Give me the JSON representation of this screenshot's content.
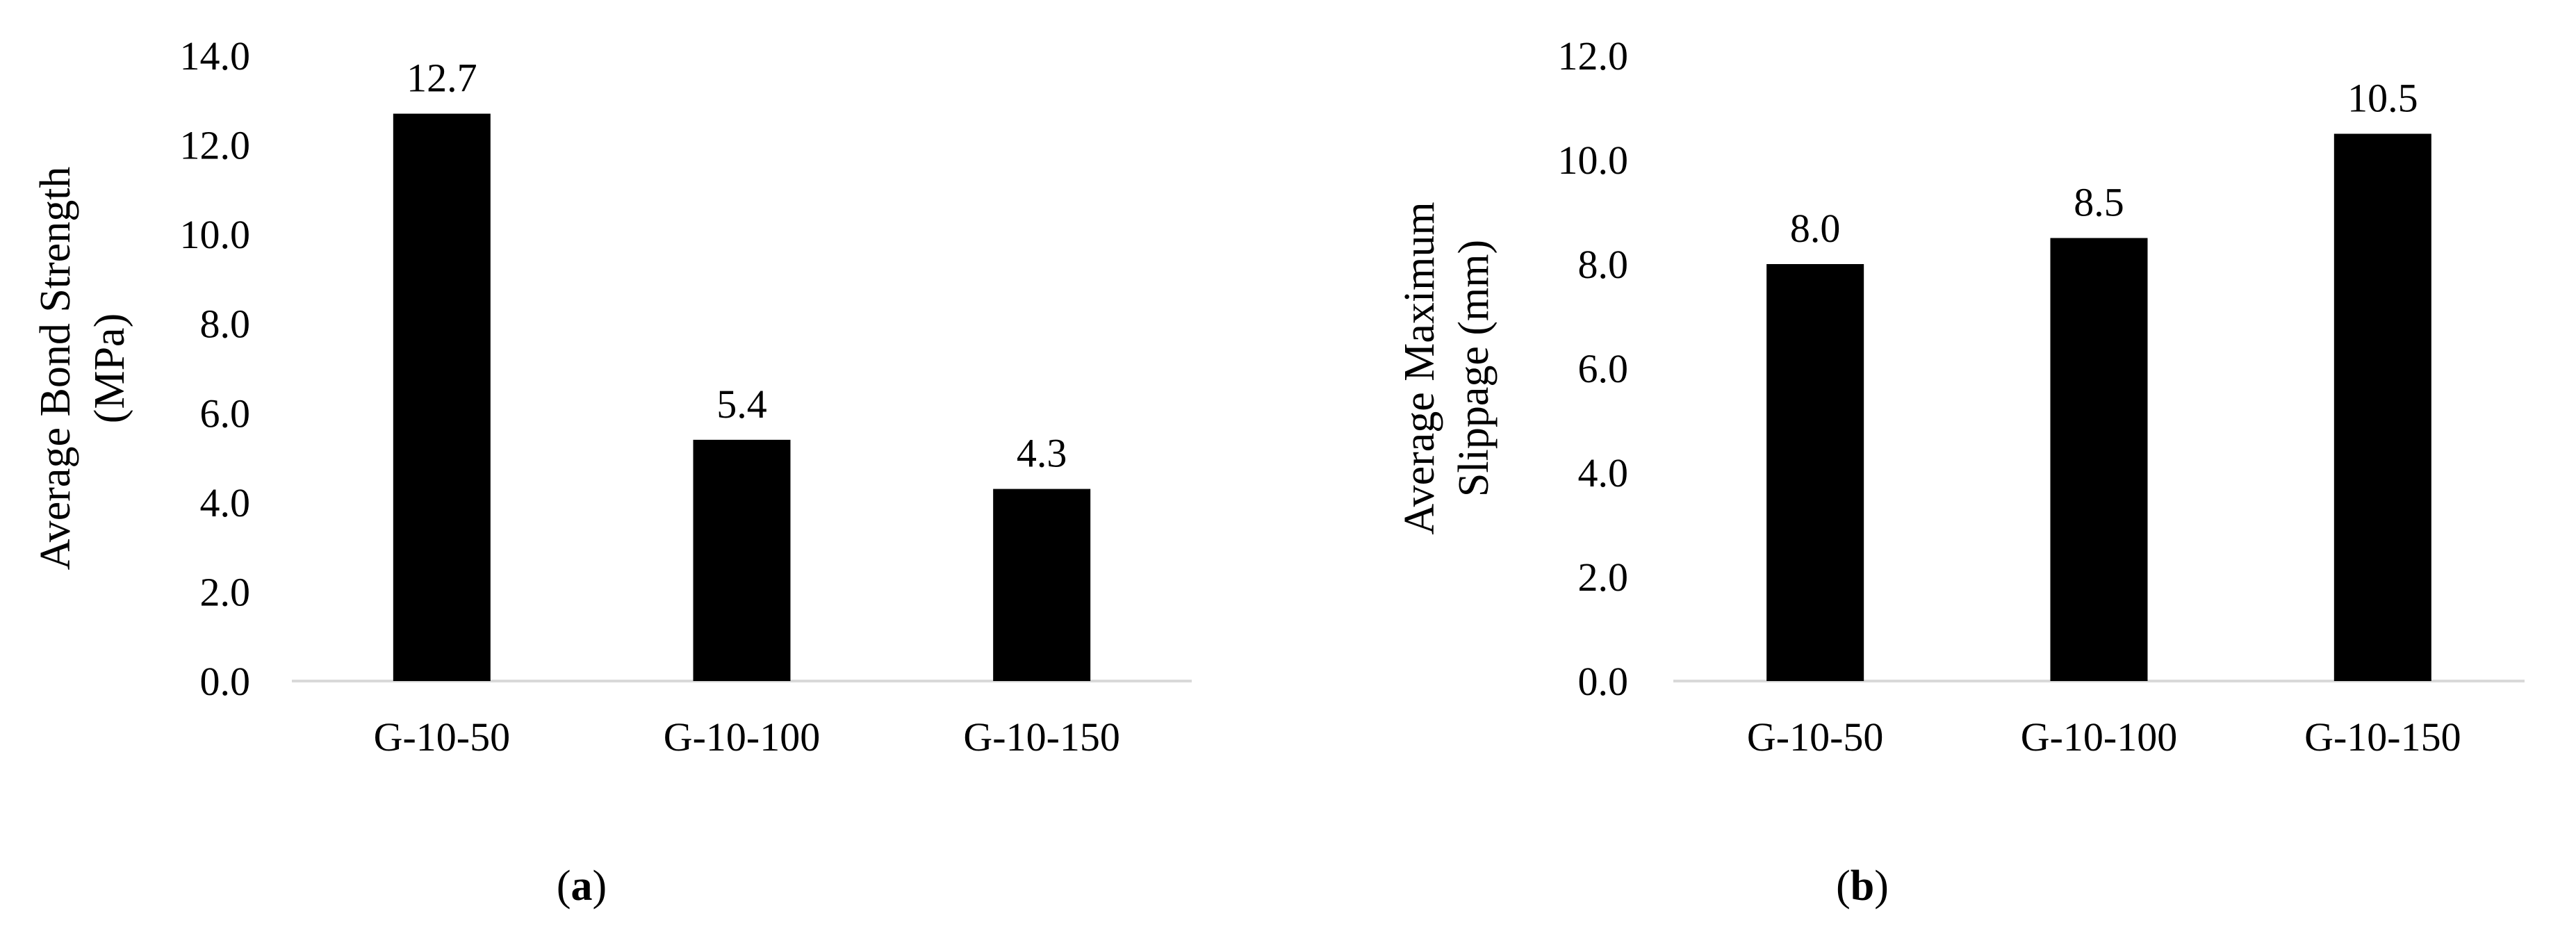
{
  "chart_data": [
    {
      "type": "bar",
      "panel_label": "a",
      "categories": [
        "G-10-50",
        "G-10-100",
        "G-10-150"
      ],
      "values": [
        12.7,
        5.4,
        4.3
      ],
      "data_labels": [
        "12.7",
        "5.4",
        "4.3"
      ],
      "ylabel_lines": [
        "Average Bond Strength",
        "(MPa)"
      ],
      "ylim": [
        0,
        14
      ],
      "yticks": [
        "0.0",
        "2.0",
        "4.0",
        "6.0",
        "8.0",
        "10.0",
        "12.0",
        "14.0"
      ],
      "bar_color": "#000000",
      "grid": false,
      "legend": "none"
    },
    {
      "type": "bar",
      "panel_label": "b",
      "categories": [
        "G-10-50",
        "G-10-100",
        "G-10-150"
      ],
      "values": [
        8.0,
        8.5,
        10.5
      ],
      "data_labels": [
        "8.0",
        "8.5",
        "10.5"
      ],
      "ylabel_lines": [
        "Average Maximum",
        "Slippage (mm)"
      ],
      "ylim": [
        0,
        12
      ],
      "yticks": [
        "0.0",
        "2.0",
        "4.0",
        "6.0",
        "8.0",
        "10.0",
        "12.0"
      ],
      "bar_color": "#000000",
      "grid": false,
      "legend": "none"
    }
  ]
}
